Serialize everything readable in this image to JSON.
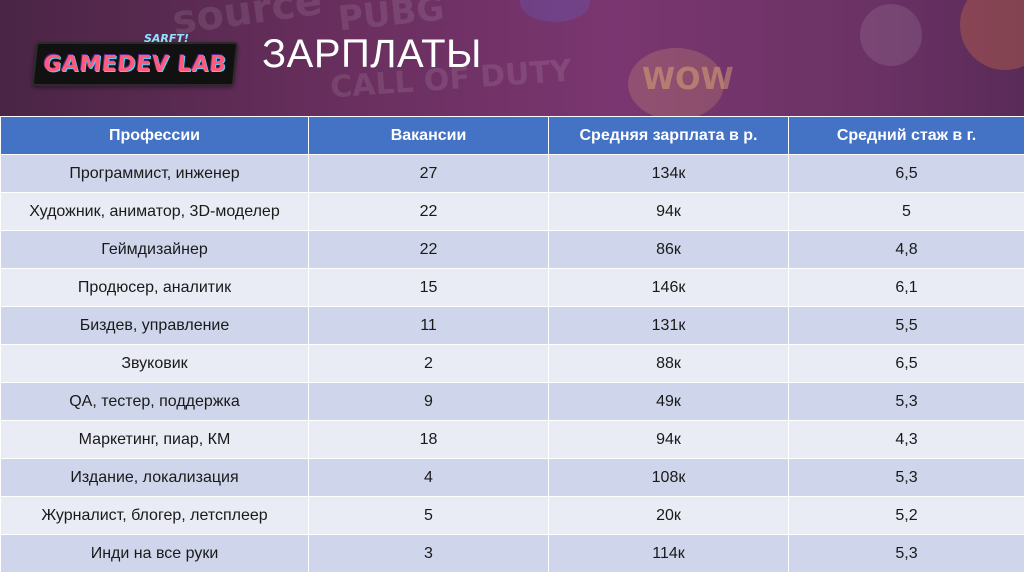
{
  "header": {
    "title": "ЗАРПЛАТЫ",
    "logo_text": "GAMEDEV LAB",
    "logo_tag": "SARFT!"
  },
  "background_logos": [
    "source",
    "PUBG",
    "CALL OF DUTY",
    "WOW"
  ],
  "colors": {
    "banner": "#6a2f5f",
    "header_row": "#4472c4",
    "row_dark": "#cfd5ea",
    "row_light": "#e9ebf5"
  },
  "table": {
    "columns": [
      "Профессии",
      "Вакансии",
      "Средняя зарплата в р.",
      "Средний стаж в г."
    ],
    "rows": [
      [
        "Программист, инженер",
        "27",
        "134к",
        "6,5"
      ],
      [
        "Художник, аниматор, 3D-моделер",
        "22",
        "94к",
        "5"
      ],
      [
        "Геймдизайнер",
        "22",
        "86к",
        "4,8"
      ],
      [
        "Продюсер, аналитик",
        "15",
        "146к",
        "6,1"
      ],
      [
        "Биздев, управление",
        "11",
        "131к",
        "5,5"
      ],
      [
        "Звуковик",
        "2",
        "88к",
        "6,5"
      ],
      [
        "QA, тестер, поддержка",
        "9",
        "49к",
        "5,3"
      ],
      [
        "Маркетинг, пиар, КМ",
        "18",
        "94к",
        "4,3"
      ],
      [
        "Издание, локализация",
        "4",
        "108к",
        "5,3"
      ],
      [
        "Журналист, блогер, летсплеер",
        "5",
        "20к",
        "5,2"
      ],
      [
        "Инди на все руки",
        "3",
        "114к",
        "5,3"
      ]
    ]
  }
}
